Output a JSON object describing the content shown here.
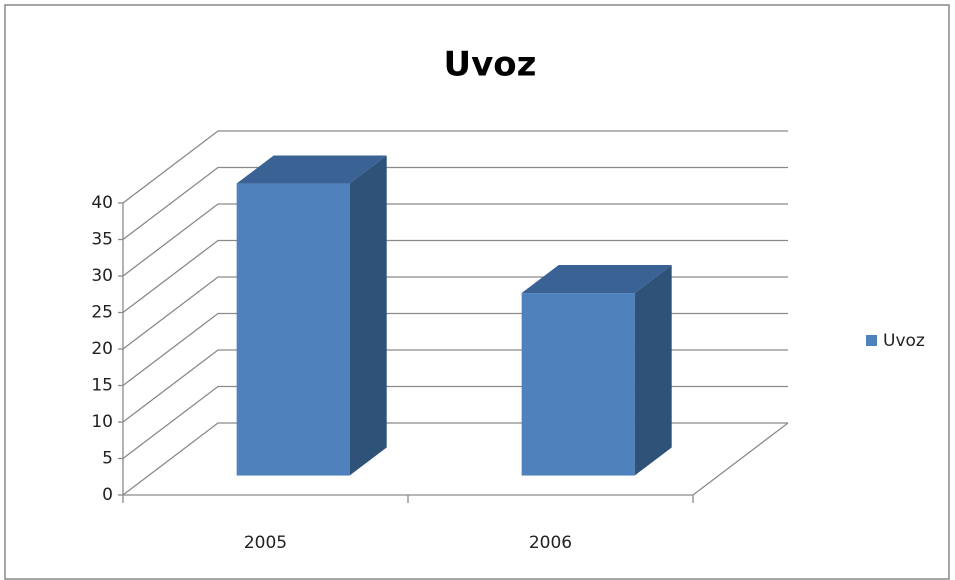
{
  "chart_data": {
    "type": "bar3d",
    "title": "Uvoz",
    "categories": [
      "2005",
      "2006"
    ],
    "series": [
      {
        "name": "Uvoz",
        "color": "#4f81bd",
        "values": [
          40,
          25
        ]
      }
    ],
    "ylim": [
      0,
      40
    ],
    "yticks": [
      0,
      5,
      10,
      15,
      20,
      25,
      30,
      35,
      40
    ],
    "grid": true,
    "legend": "right"
  }
}
